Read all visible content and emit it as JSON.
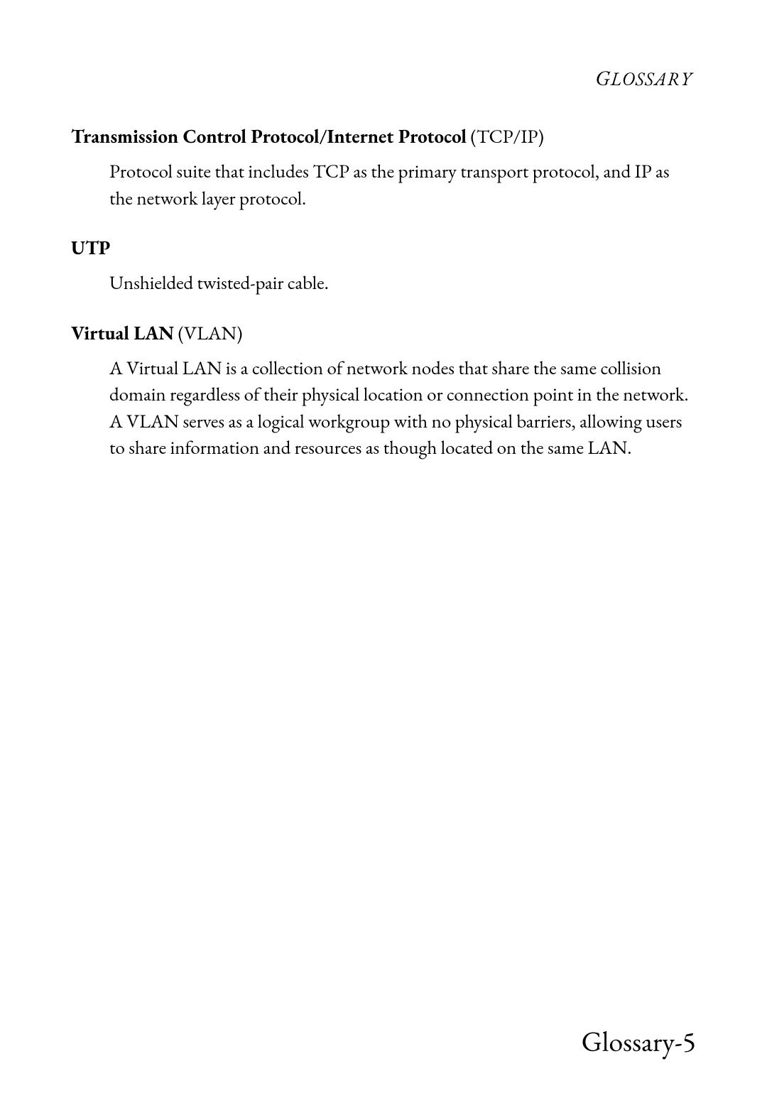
{
  "header": {
    "label_cap": "G",
    "label_rest": "LOSSARY"
  },
  "entries": [
    {
      "term_bold": "Transmission Control Protocol/Internet Protocol",
      "term_paren": " (TCP/IP)",
      "definition": "Protocol suite that includes TCP as the primary transport protocol, and IP as the network layer protocol."
    },
    {
      "term_bold": "UTP",
      "term_paren": "",
      "definition": "Unshielded twisted-pair cable."
    },
    {
      "term_bold": "Virtual LAN",
      "term_paren": " (VLAN)",
      "definition": "A Virtual LAN is a collection of network nodes that share the same collision domain regardless of their physical location or connection point in the network. A VLAN serves as a logical workgroup with no physical barriers, allowing users to share information and resources as though located on the same LAN."
    }
  ],
  "footer": {
    "page_number": "Glossary-5"
  },
  "colors": {
    "background": "#ffffff",
    "text": "#000000"
  },
  "typography": {
    "body_fontsize_pt": 20,
    "header_fontsize_pt": 20,
    "footer_fontsize_pt": 30,
    "font_family": "Garamond"
  }
}
